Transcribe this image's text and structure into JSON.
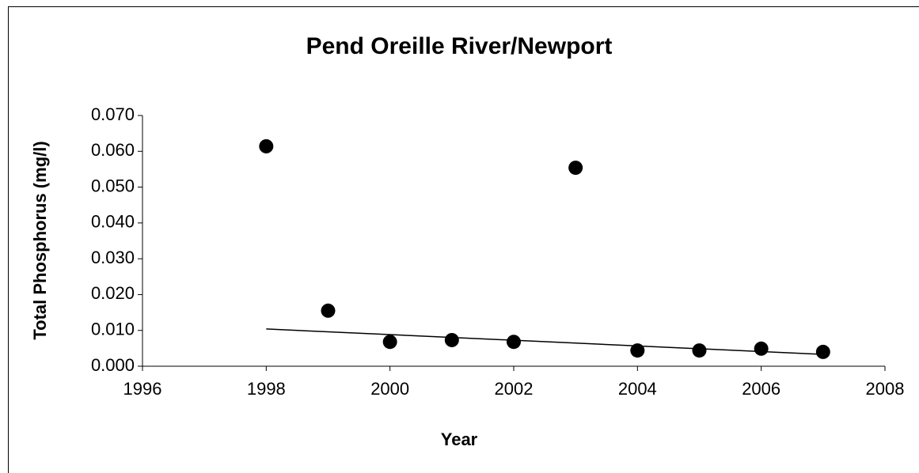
{
  "chart_data": {
    "type": "scatter",
    "title": "Pend Oreille River/Newport",
    "x_label": "Year",
    "y_label": "Total Phosphorus (mg/l)",
    "x": [
      1998,
      1999,
      2000,
      2001,
      2002,
      2003,
      2004,
      2005,
      2006,
      2007
    ],
    "values": [
      0.0614,
      0.0155,
      0.0068,
      0.0073,
      0.0068,
      0.0554,
      0.0044,
      0.0044,
      0.0049,
      0.004
    ],
    "color": "#000000",
    "trendline": {
      "x": [
        1998,
        2007
      ],
      "values": [
        0.0104,
        0.0033
      ],
      "color": "#000000"
    },
    "xlim": [
      1996,
      2008
    ],
    "xticks": [
      1996,
      1998,
      2000,
      2002,
      2004,
      2006,
      2008
    ],
    "ylim": [
      0,
      0.07
    ],
    "yticks": [
      {
        "value": 0,
        "label": "0.000"
      },
      {
        "value": 0.01,
        "label": "0.010"
      },
      {
        "value": 0.02,
        "label": "0.020"
      },
      {
        "value": 0.03,
        "label": "0.030"
      },
      {
        "value": 0.04,
        "label": "0.040"
      },
      {
        "value": 0.05,
        "label": "0.050"
      },
      {
        "value": 0.06,
        "label": "0.060"
      },
      {
        "value": 0.07,
        "label": "0.070"
      }
    ],
    "grid": false
  }
}
